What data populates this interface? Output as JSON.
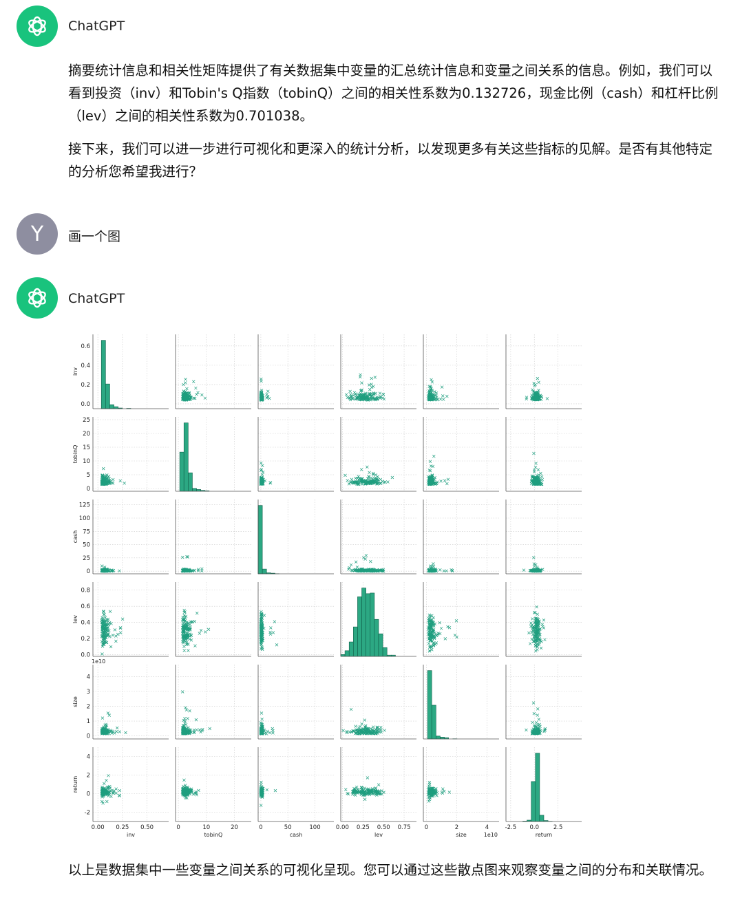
{
  "assistant_name": "ChatGPT",
  "user_initial": "Y",
  "messages": {
    "assistant1_p1": "摘要统计信息和相关性矩阵提供了有关数据集中变量的汇总统计信息和变量之间关系的信息。例如，我们可以看到投资（inv）和Tobin's Q指数（tobinQ）之间的相关性系数为0.132726，现金比例（cash）和杠杆比例（lev）之间的相关性系数为0.701038。",
    "assistant1_p2": "接下来，我们可以进一步进行可视化和更深入的统计分析，以发现更多有关这些指标的见解。是否有其他特定的分析您希望我进行？",
    "user1": "画一个图",
    "assistant2_p1": "以上是数据集中一些变量之间关系的可视化呈现。您可以通过这些散点图来观察变量之间的分布和关联情况。"
  },
  "colors": {
    "accent": "#19c37d",
    "user_avatar": "#8e8ea0",
    "marker": "#1f9e7f",
    "hist_fill": "#2ca883"
  },
  "icons": {
    "assistant_avatar": "openai-logo-icon"
  },
  "chart_data": {
    "type": "scatter",
    "subtype": "pairplot",
    "marker": "x",
    "grid": true,
    "variables": [
      "inv",
      "tobinQ",
      "cash",
      "lev",
      "size",
      "return"
    ],
    "y_ticks": {
      "inv": [
        "0.0",
        "0.2",
        "0.4",
        "0.6"
      ],
      "tobinQ": [
        "0",
        "5",
        "10",
        "15",
        "20",
        "25"
      ],
      "cash": [
        "0",
        "25",
        "50",
        "75",
        "100",
        "125"
      ],
      "lev": [
        "0.0",
        "0.2",
        "0.4",
        "0.6",
        "0.8"
      ],
      "size": [
        "0",
        "1",
        "2",
        "3",
        "4"
      ],
      "return": [
        "-2",
        "0",
        "2",
        "4"
      ]
    },
    "x_ticks": {
      "inv": [
        "0.00",
        "0.25",
        "0.50"
      ],
      "tobinQ": [
        "0",
        "10",
        "20"
      ],
      "cash": [
        "0",
        "50",
        "100"
      ],
      "lev": [
        "0.00",
        "0.25",
        "0.50",
        "0.75"
      ],
      "size": [
        "0",
        "2",
        "4"
      ],
      "return": [
        "-2.5",
        "0.0",
        "2.5"
      ]
    },
    "offset_text": {
      "size_y": "1e10",
      "size_x": "1e10"
    },
    "ranges": {
      "inv": [
        -0.05,
        0.72
      ],
      "tobinQ": [
        -1,
        26
      ],
      "cash": [
        -5,
        135
      ],
      "lev": [
        -0.02,
        0.9
      ],
      "size": [
        -0.2,
        4.8
      ],
      "return": [
        -3,
        5
      ]
    }
  }
}
